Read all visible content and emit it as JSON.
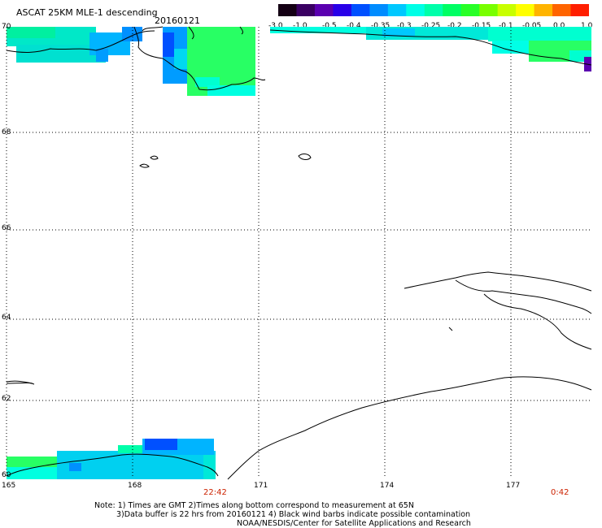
{
  "header": {
    "title": "ASCAT 25KM MLE-1 descending",
    "date": "20160121"
  },
  "colorbar": {
    "colors": [
      "#140014",
      "#3a0062",
      "#5a00b0",
      "#2800e8",
      "#0050ff",
      "#008cff",
      "#00c8ff",
      "#00ffe6",
      "#00ffaa",
      "#00ff64",
      "#28ff28",
      "#78ff00",
      "#c8ff00",
      "#ffff00",
      "#ffb400",
      "#ff6400",
      "#ff1e00"
    ],
    "labels": [
      "-3.0",
      "-1.0",
      "-0.5",
      "-0.4",
      "-0.35",
      "-0.3",
      "-0.25",
      "-0.2",
      "-0.15",
      "-0.1",
      "-0.05",
      "0.0",
      "1.0"
    ]
  },
  "axes": {
    "y_labels": [
      "70",
      "68",
      "66",
      "64",
      "62",
      "60"
    ],
    "x_labels": [
      "165",
      "168",
      "171",
      "174",
      "177"
    ]
  },
  "times": {
    "t1": "22:42",
    "t2": "0:42"
  },
  "notes": {
    "line1": "Note: 1) Times are GMT 2)Times along bottom correspond to measurement at 65N",
    "line2": "3)Data buffer is 22 hrs from 20160121 4) Black wind barbs indicate possible contamination",
    "line3": "NOAA/NESDIS/Center for Satellite Applications and Research"
  }
}
